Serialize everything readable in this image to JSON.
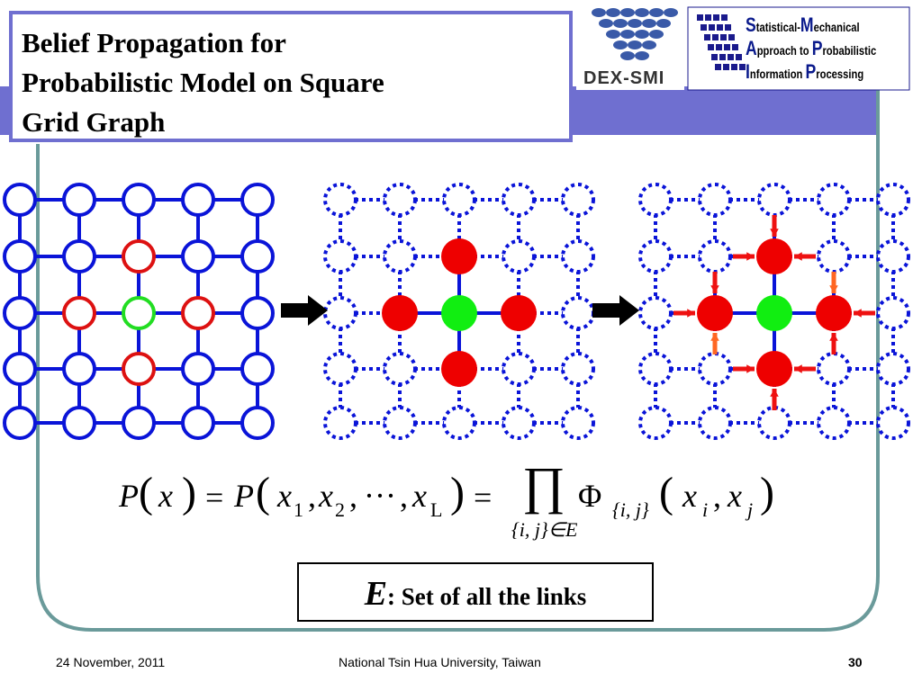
{
  "header": {
    "title": [
      "Belief Propagation for",
      "Probabilistic Model on Square",
      "Grid Graph"
    ],
    "logo_left": "DEX-SMI",
    "logo_right": [
      "tatistical-",
      "echanical",
      "pproach to ",
      "robabilistic",
      "nformation ",
      "rocessing"
    ],
    "logo_right_initials": [
      "S",
      "M",
      "A",
      "P",
      "I",
      "P"
    ]
  },
  "formula": {
    "parts": [
      "P",
      "(",
      "x⃗",
      ")",
      "=",
      "P",
      "(",
      "x",
      "1",
      ",",
      "x",
      "2",
      ",",
      "···",
      ",",
      "x",
      "L",
      ")",
      "=",
      "∏",
      "{i, j}∈E",
      "Φ",
      "{i, j}",
      "(",
      "x",
      "i",
      ",",
      "x",
      "j",
      ")"
    ]
  },
  "definition": {
    "symbol": "E",
    "text": ": Set of all the links"
  },
  "footer": {
    "date": "24 November, 2011",
    "institution": "National Tsin Hua University, Taiwan",
    "page": "30"
  }
}
